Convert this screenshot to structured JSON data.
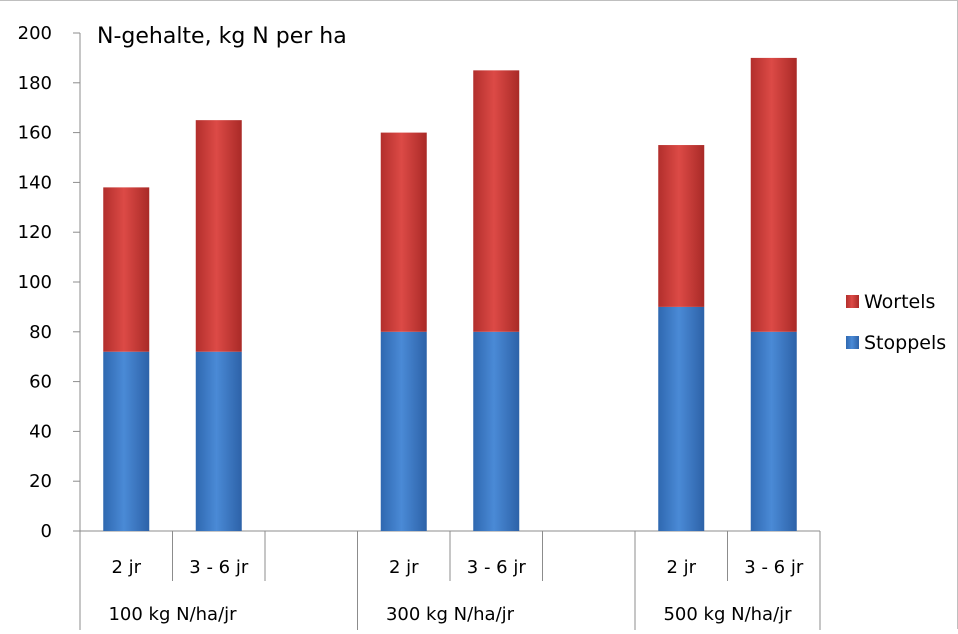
{
  "chart_data": {
    "type": "bar",
    "stacked": true,
    "title": "N-gehalte, kg N per ha",
    "xlabel": "",
    "ylabel": "",
    "ylim": [
      0,
      200
    ],
    "yticks": [
      0,
      20,
      40,
      60,
      80,
      100,
      120,
      140,
      160,
      180,
      200
    ],
    "grid": false,
    "legend_position": "right",
    "groups": [
      "100 kg N/ha/jr",
      "300 kg N/ha/jr",
      "500 kg N/ha/jr"
    ],
    "categories": [
      "2 jr",
      "3 - 6 jr",
      "2 jr",
      "3 - 6 jr",
      "2 jr",
      "3 - 6 jr"
    ],
    "series": [
      {
        "name": "Stoppels",
        "color": "#3a79c4",
        "values": [
          72,
          72,
          80,
          80,
          90,
          80
        ]
      },
      {
        "name": "Wortels",
        "color": "#c83a37",
        "values": [
          66,
          93,
          80,
          105,
          65,
          110
        ]
      }
    ]
  }
}
